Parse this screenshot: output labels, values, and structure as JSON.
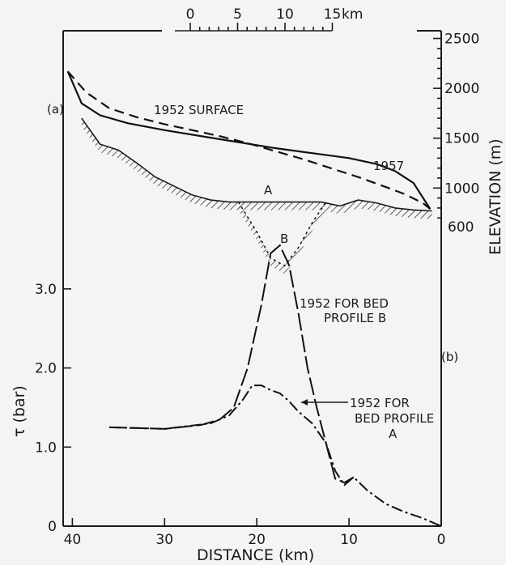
{
  "chart_data": [
    {
      "type": "line",
      "panel_label": "(a)",
      "xlabel": "km",
      "ylabel": "ELEVATION (m)",
      "x_ticks": [
        "0",
        "5",
        "10",
        "15"
      ],
      "y_ticks": [
        "2500",
        "2000",
        "1500",
        "1000",
        "600"
      ],
      "ylim": [
        600,
        2500
      ],
      "series": [
        {
          "name": "1952 SURFACE",
          "style": "dashed",
          "x": [
            40.5,
            38.5,
            36,
            33,
            30,
            27,
            24,
            21,
            18,
            15,
            12,
            9,
            6,
            4,
            2,
            1.2
          ],
          "y": [
            2170,
            1960,
            1800,
            1710,
            1640,
            1580,
            1520,
            1450,
            1370,
            1290,
            1200,
            1110,
            1010,
            940,
            850,
            790
          ]
        },
        {
          "name": "1957",
          "style": "solid",
          "x": [
            40.5,
            39,
            37,
            34,
            30,
            26,
            22,
            18,
            14,
            10,
            7,
            5,
            3,
            1.2
          ],
          "y": [
            2170,
            1850,
            1730,
            1650,
            1580,
            1520,
            1460,
            1400,
            1350,
            1300,
            1240,
            1170,
            1050,
            790
          ]
        },
        {
          "name": "bed profile A",
          "style": "hatched",
          "x": [
            39,
            37,
            35,
            33,
            31,
            29,
            27,
            25,
            23,
            21,
            19,
            17,
            15,
            13,
            11,
            9,
            7,
            5,
            3,
            1
          ],
          "y": [
            1700,
            1440,
            1380,
            1250,
            1110,
            1020,
            930,
            880,
            860,
            860,
            860,
            860,
            860,
            860,
            820,
            880,
            850,
            800,
            780,
            770
          ]
        },
        {
          "name": "bed profile B",
          "style": "hatched",
          "x": [
            22,
            20,
            18.5,
            17,
            15.5,
            14,
            12.5
          ],
          "y": [
            860,
            560,
            300,
            220,
            400,
            650,
            860
          ]
        }
      ],
      "annotations": [
        "A",
        "B"
      ]
    },
    {
      "type": "line",
      "panel_label": "(b)",
      "xlabel": "DISTANCE (km)",
      "ylabel": "τ (bar)",
      "x_ticks": [
        "40",
        "30",
        "20",
        "10",
        "0"
      ],
      "y_ticks": [
        "0",
        "1.0",
        "2.0",
        "3.0"
      ],
      "xlim": [
        41,
        0
      ],
      "ylim": [
        0,
        3.9
      ],
      "series": [
        {
          "name": "1952 FOR BED PROFILE B",
          "style": "long-dash",
          "x": [
            36,
            30,
            26,
            24,
            22.5,
            21,
            19.5,
            18.5,
            17.5,
            16.5,
            15.5,
            14.5,
            13.5,
            12.5,
            11.5,
            10.5,
            9.5
          ],
          "y": [
            1.25,
            1.23,
            1.28,
            1.35,
            1.5,
            2.0,
            2.8,
            3.45,
            3.55,
            3.3,
            2.7,
            2.0,
            1.5,
            1.05,
            0.6,
            0.55,
            0.62
          ]
        },
        {
          "name": "1952 FOR BED PROFILE A",
          "style": "dash-dot",
          "x": [
            36,
            30,
            25,
            23,
            21.5,
            20.5,
            19.5,
            18.5,
            17.5,
            16.5,
            15.5,
            14,
            12.5,
            11.5,
            10.5,
            9.5,
            8,
            6,
            4,
            2,
            0
          ],
          "y": [
            1.25,
            1.23,
            1.3,
            1.4,
            1.6,
            1.78,
            1.78,
            1.72,
            1.68,
            1.58,
            1.45,
            1.3,
            1.05,
            0.7,
            0.52,
            0.62,
            0.45,
            0.28,
            0.18,
            0.1,
            0
          ]
        }
      ],
      "annotations": [
        "1952 FOR BED PROFILE B",
        "1952 FOR BED PROFILE A"
      ]
    }
  ],
  "labels": {
    "panel_a": "(a)",
    "panel_b": "(b)",
    "surface_1952": "1952 SURFACE",
    "surface_1957": "1957",
    "profile_a": "A",
    "profile_b": "B",
    "ann_b_line1": "1952 FOR BED",
    "ann_b_line2": "PROFILE B",
    "ann_a_line1": "1952 FOR",
    "ann_a_line2": "BED PROFILE",
    "ann_a_line3": "A",
    "top_unit": "km",
    "right_axis": "ELEVATION (m)",
    "left_axis": "τ (bar)",
    "bottom_axis": "DISTANCE (km)"
  }
}
